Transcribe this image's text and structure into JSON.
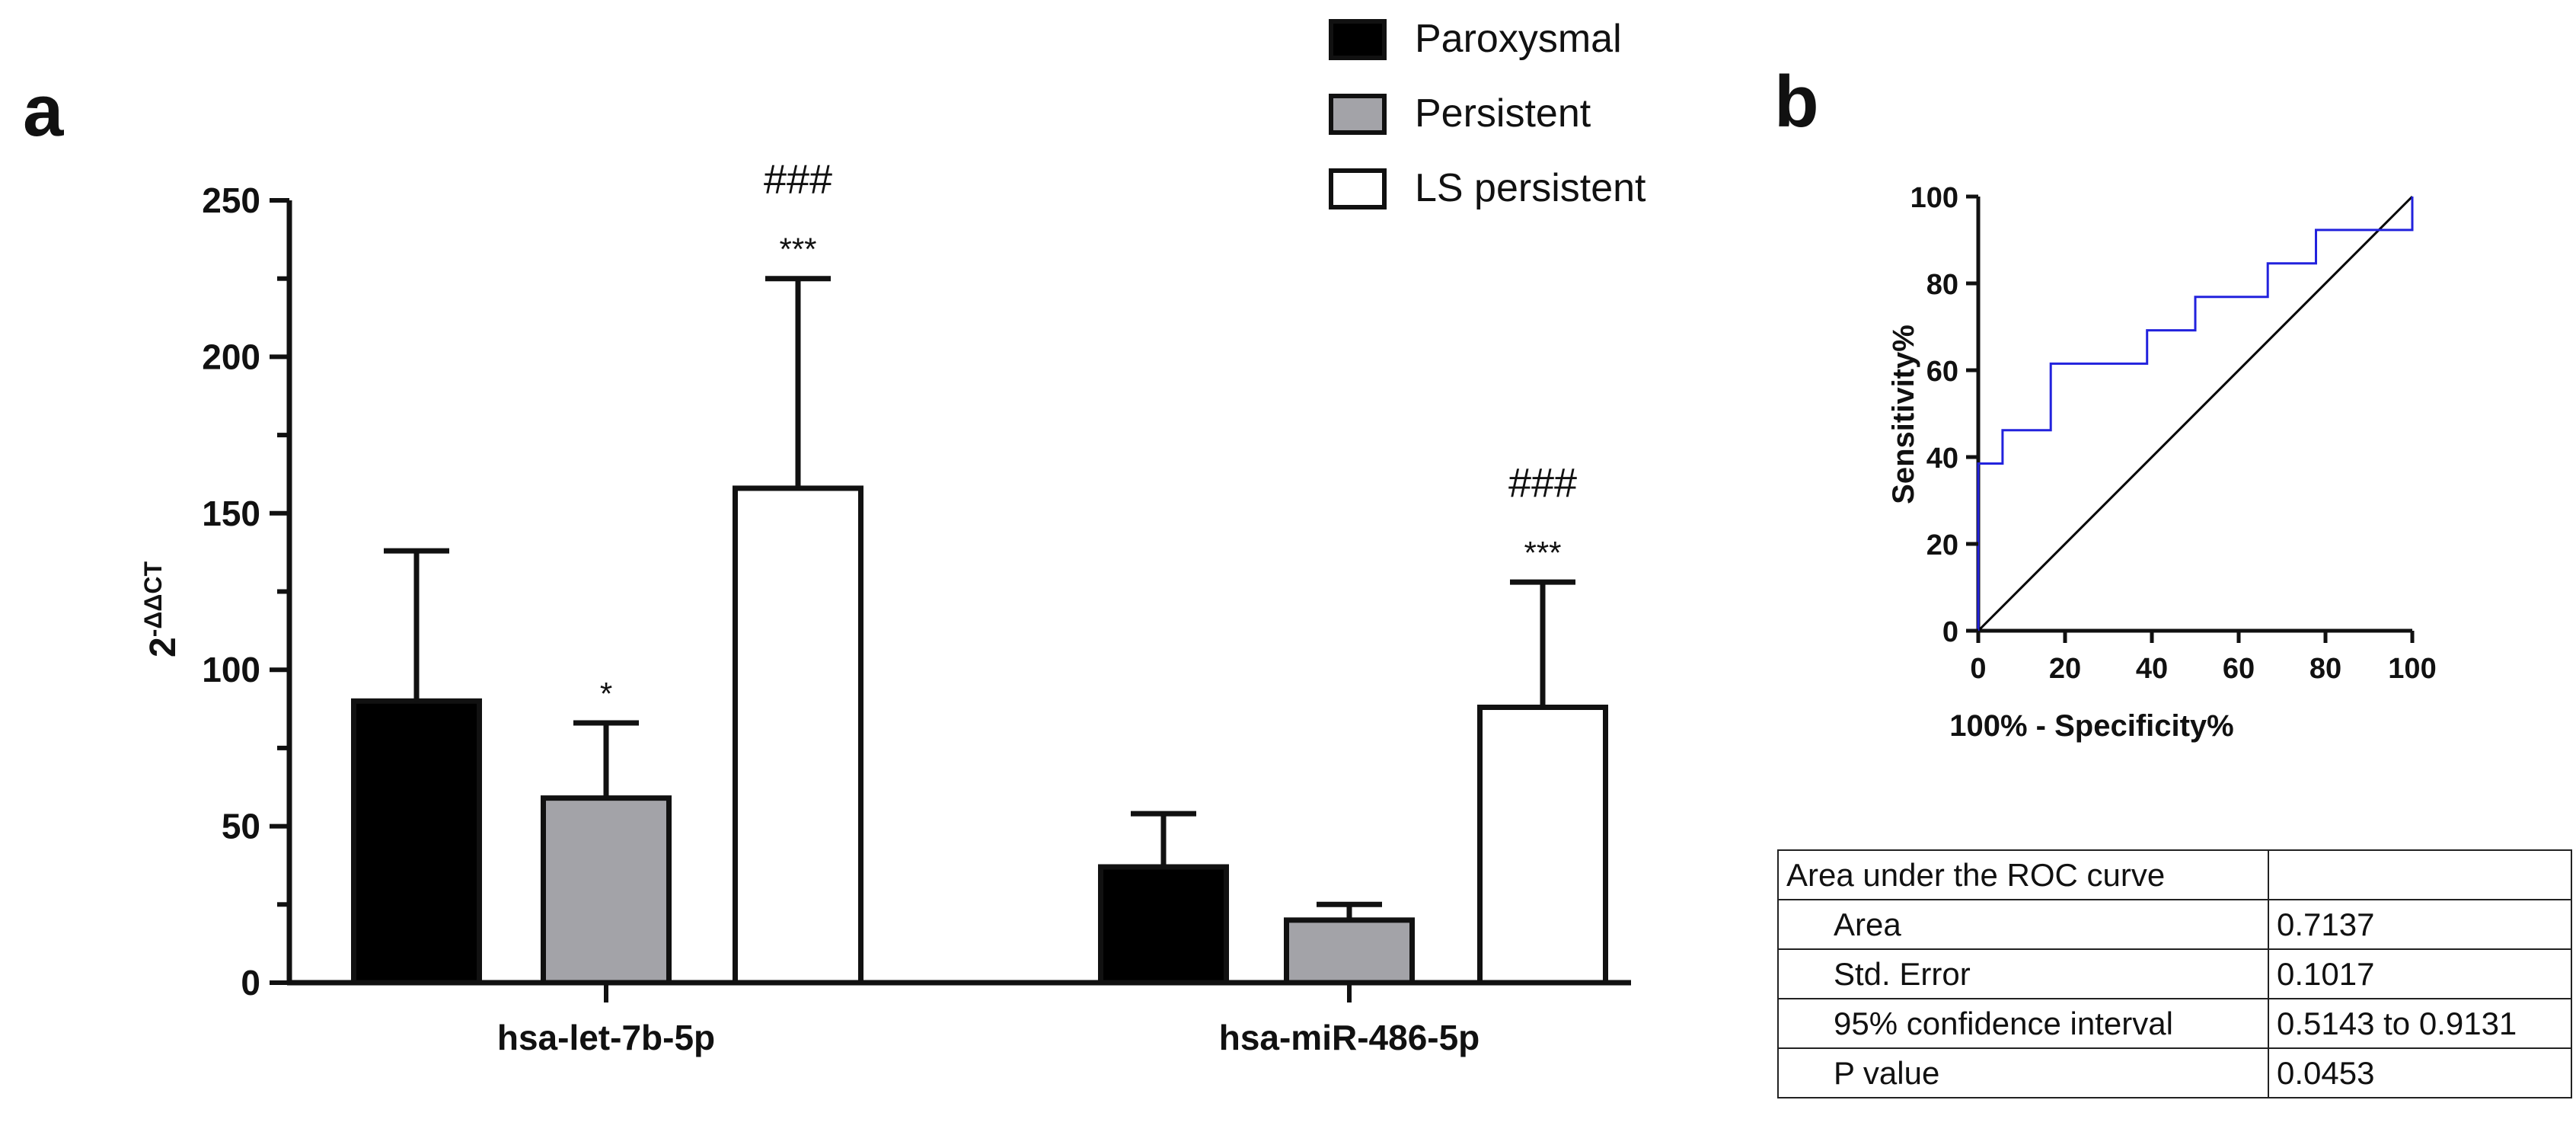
{
  "panel_labels": {
    "a": "a",
    "b": "b"
  },
  "chart_data": [
    {
      "type": "bar",
      "panel": "a",
      "title": "",
      "ylabel_base": "2",
      "ylabel_sup": "-ΔΔCT",
      "xlabel": "",
      "ylim": [
        0,
        250
      ],
      "yticks": [
        0,
        50,
        100,
        150,
        200,
        250
      ],
      "categories": [
        "hsa-let-7b-5p",
        "hsa-miR-486-5p"
      ],
      "series": [
        {
          "name": "Paroxysmal",
          "color": "#000000",
          "values": [
            90,
            37
          ],
          "errors": [
            48,
            17
          ]
        },
        {
          "name": "Persistent",
          "color": "#a3a3a8",
          "values": [
            59,
            20
          ],
          "errors": [
            24,
            5
          ]
        },
        {
          "name": "LS persistent",
          "color": "#ffffff",
          "values": [
            158,
            88
          ],
          "errors": [
            67,
            40
          ]
        }
      ],
      "annotations": [
        {
          "category": 0,
          "series": 1,
          "lines": [
            "*"
          ]
        },
        {
          "category": 0,
          "series": 2,
          "lines": [
            "###",
            "***"
          ]
        },
        {
          "category": 1,
          "series": 2,
          "lines": [
            "###",
            "***"
          ]
        }
      ],
      "legend_position": "top-right"
    },
    {
      "type": "line",
      "panel": "b",
      "xlabel": "100% - Specificity%",
      "ylabel": "Sensitivity%",
      "xlim": [
        0,
        100
      ],
      "ylim": [
        0,
        100
      ],
      "xticks": [
        0,
        20,
        40,
        60,
        80,
        100
      ],
      "yticks": [
        0,
        20,
        40,
        60,
        80,
        100
      ],
      "series": [
        {
          "name": "ROC curve",
          "color": "#2222dd",
          "x": [
            0,
            0,
            0,
            5.6,
            5.6,
            16.7,
            16.7,
            38.9,
            38.9,
            50,
            50,
            66.7,
            66.7,
            77.8,
            77.8,
            100,
            100
          ],
          "y": [
            0,
            38.5,
            38.5,
            38.5,
            46.2,
            46.2,
            61.5,
            61.5,
            69.2,
            69.2,
            76.9,
            76.9,
            84.6,
            84.6,
            92.3,
            92.3,
            100
          ]
        },
        {
          "name": "Reference line",
          "color": "#000000",
          "x": [
            0,
            100
          ],
          "y": [
            0,
            100
          ]
        }
      ]
    }
  ],
  "roc_table": {
    "header": "Area under the ROC curve",
    "header_value": "",
    "rows": [
      {
        "label": "Area",
        "value": "0.7137"
      },
      {
        "label": "Std. Error",
        "value": "0.1017"
      },
      {
        "label": "95% confidence interval",
        "value": "0.5143 to 0.9131"
      },
      {
        "label": "P value",
        "value": "0.0453"
      }
    ]
  }
}
